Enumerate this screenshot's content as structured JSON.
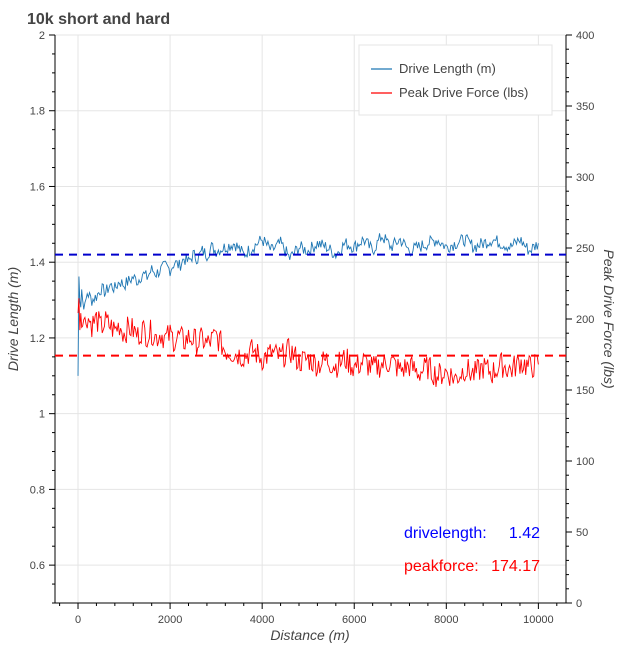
{
  "chart_data": {
    "type": "line",
    "title": "10k short and hard",
    "xlabel": "Distance (m)",
    "ylabel": "Drive Length (m)",
    "y2label": "Peak Drive Force (lbs)",
    "xlim": [
      -500,
      10600
    ],
    "ylim": [
      0.5,
      2.0
    ],
    "y2lim": [
      0,
      400
    ],
    "xticks": [
      0,
      2000,
      4000,
      6000,
      8000,
      10000
    ],
    "yticks": [
      0.6,
      0.8,
      1.0,
      1.2,
      1.4,
      1.6,
      1.8,
      2.0
    ],
    "ytick_labels": [
      "0.6",
      "0.8",
      "1",
      "1.2",
      "1.4",
      "1.6",
      "1.8",
      "2"
    ],
    "y2ticks": [
      0,
      50,
      100,
      150,
      200,
      250,
      300,
      350,
      400
    ],
    "grid": true,
    "legend_position": "top-right",
    "series": [
      {
        "name": "Drive Length (m)",
        "axis": "left",
        "color": "#1f77b4",
        "x": [
          0,
          20,
          40,
          60,
          80,
          100,
          150,
          200,
          300,
          400,
          500,
          600,
          700,
          800,
          900,
          1000,
          1100,
          1200,
          1300,
          1400,
          1500,
          1600,
          1700,
          1800,
          1900,
          2000,
          2100,
          2200,
          2300,
          2400,
          2500,
          2600,
          2700,
          2800,
          2900,
          3000,
          3200,
          3400,
          3600,
          3800,
          4000,
          4200,
          4400,
          4600,
          4800,
          5000,
          5200,
          5400,
          5600,
          5800,
          6000,
          6200,
          6400,
          6600,
          6800,
          7000,
          7200,
          7400,
          7600,
          7800,
          8000,
          8200,
          8400,
          8600,
          8800,
          9000,
          9200,
          9400,
          9600,
          9800,
          10000
        ],
        "values": [
          1.1,
          1.36,
          1.31,
          1.29,
          1.33,
          1.3,
          1.28,
          1.32,
          1.3,
          1.31,
          1.33,
          1.32,
          1.34,
          1.33,
          1.35,
          1.34,
          1.35,
          1.36,
          1.35,
          1.37,
          1.36,
          1.38,
          1.37,
          1.38,
          1.39,
          1.38,
          1.4,
          1.39,
          1.41,
          1.4,
          1.42,
          1.41,
          1.43,
          1.42,
          1.44,
          1.43,
          1.44,
          1.45,
          1.42,
          1.44,
          1.46,
          1.43,
          1.45,
          1.41,
          1.44,
          1.43,
          1.45,
          1.44,
          1.42,
          1.45,
          1.44,
          1.46,
          1.43,
          1.47,
          1.44,
          1.46,
          1.43,
          1.44,
          1.45,
          1.46,
          1.44,
          1.45,
          1.46,
          1.44,
          1.45,
          1.46,
          1.45,
          1.44,
          1.46,
          1.43,
          1.45
        ]
      },
      {
        "name": "Peak Drive Force (lbs)",
        "axis": "right",
        "color": "#ff0000",
        "x": [
          0,
          20,
          40,
          60,
          80,
          100,
          150,
          200,
          300,
          400,
          500,
          600,
          700,
          800,
          900,
          1000,
          1100,
          1200,
          1300,
          1400,
          1500,
          1600,
          1700,
          1800,
          1900,
          2000,
          2100,
          2200,
          2300,
          2400,
          2500,
          2600,
          2700,
          2800,
          2900,
          3000,
          3200,
          3400,
          3600,
          3800,
          4000,
          4200,
          4400,
          4600,
          4800,
          5000,
          5200,
          5400,
          5600,
          5800,
          6000,
          6200,
          6400,
          6600,
          6800,
          7000,
          7200,
          7400,
          7600,
          7800,
          8000,
          8200,
          8400,
          8600,
          8800,
          9000,
          9200,
          9400,
          9600,
          9800,
          10000
        ],
        "values": [
          205,
          210,
          200,
          206,
          198,
          204,
          197,
          202,
          196,
          200,
          194,
          198,
          195,
          192,
          196,
          190,
          194,
          192,
          188,
          193,
          189,
          191,
          187,
          190,
          186,
          189,
          185,
          188,
          184,
          187,
          186,
          183,
          186,
          182,
          185,
          188,
          178,
          176,
          174,
          178,
          172,
          176,
          173,
          178,
          170,
          172,
          168,
          171,
          167,
          172,
          166,
          170,
          165,
          168,
          170,
          164,
          167,
          162,
          166,
          160,
          163,
          158,
          165,
          161,
          166,
          162,
          168,
          164,
          170,
          166,
          168
        ]
      }
    ],
    "reference_lines": [
      {
        "axis": "left",
        "value": 1.42,
        "color": "#0000cc",
        "style": "dashed"
      },
      {
        "axis": "right",
        "value": 174.17,
        "color": "#ff0000",
        "style": "dashed"
      }
    ],
    "annotations": [
      {
        "label": "drivelength:",
        "value": "1.42",
        "color": "#0000ff"
      },
      {
        "label": "peakforce:",
        "value": "174.17",
        "color": "#ff0000"
      }
    ]
  }
}
